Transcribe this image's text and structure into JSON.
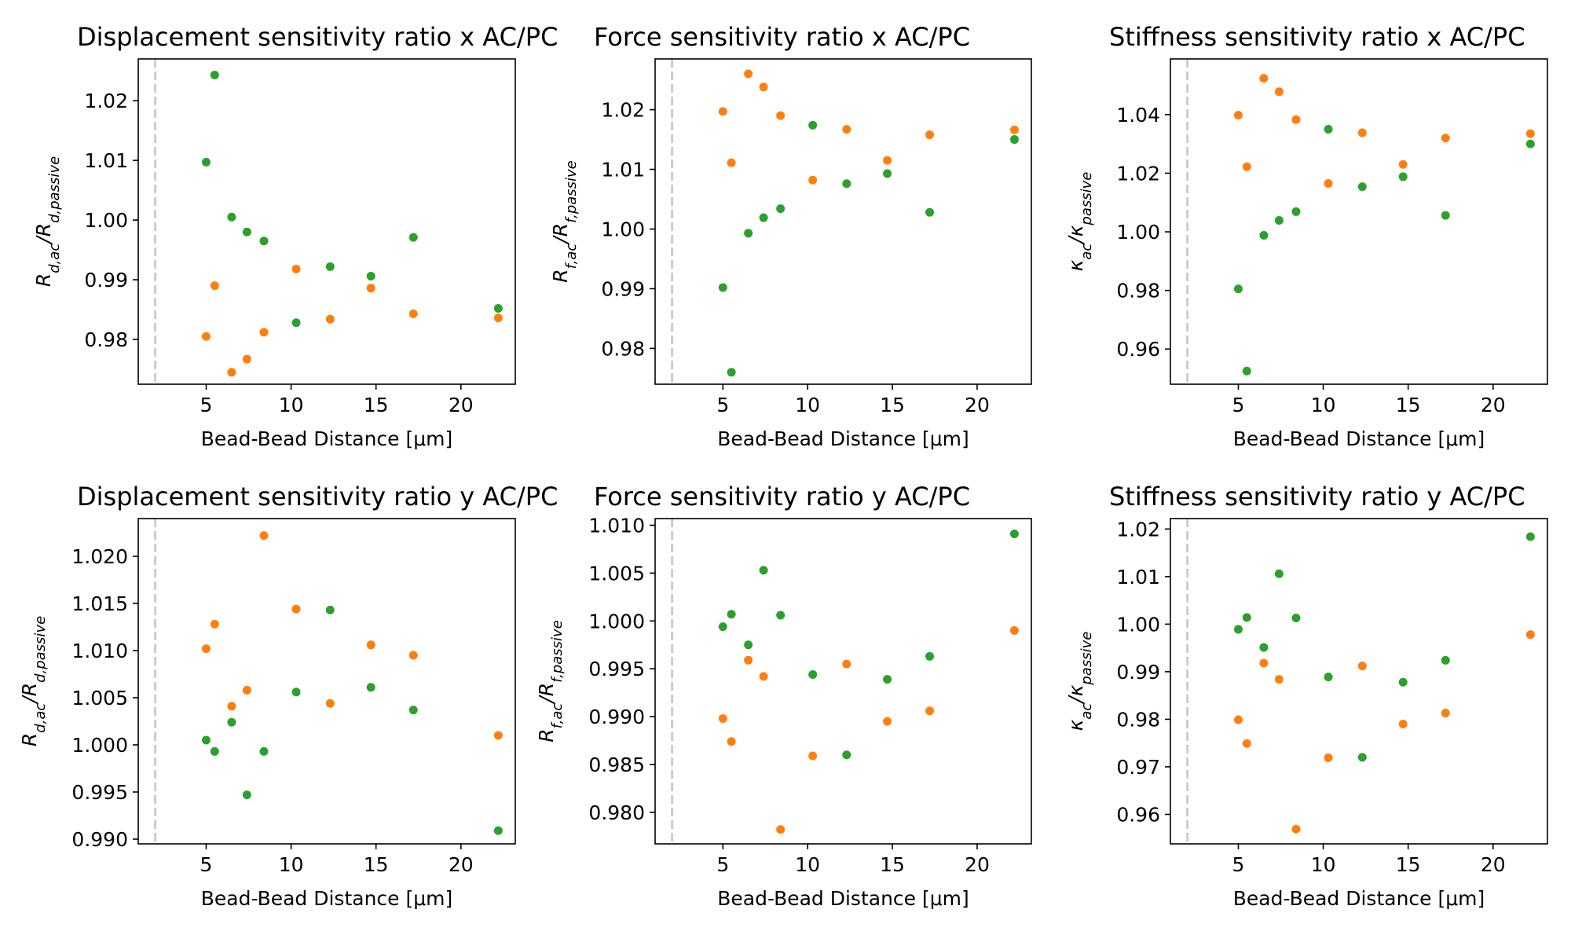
{
  "colors": {
    "orange": "#ff7f0e",
    "green": "#2ca02c",
    "vline": "#cccccc",
    "frame": "#000000"
  },
  "chart_data": [
    {
      "type": "scatter",
      "title": "Displacement sensitivity ratio x AC/PC",
      "xlabel": "Bead-Bead Distance [μm]",
      "ylabel": "R_{d,ac}/R_{d,passive}",
      "xlim": [
        1.0,
        23.2
      ],
      "ylim": [
        0.9725,
        1.027
      ],
      "xticks": [
        5,
        10,
        15,
        20
      ],
      "yticks": [
        0.98,
        0.99,
        1.0,
        1.01,
        1.02
      ],
      "vline": 2.0,
      "series": [
        {
          "color": "orange",
          "x": [
            5.0,
            5.5,
            6.5,
            7.4,
            8.4,
            10.3,
            12.3,
            14.7,
            17.2,
            22.2
          ],
          "y": [
            0.9805,
            0.989,
            0.9745,
            0.9767,
            0.9812,
            0.9918,
            0.9834,
            0.9886,
            0.9843,
            0.9836
          ]
        },
        {
          "color": "green",
          "x": [
            5.0,
            5.5,
            6.5,
            7.4,
            8.4,
            10.3,
            12.3,
            14.7,
            17.2,
            22.2
          ],
          "y": [
            1.0097,
            1.0243,
            1.0005,
            0.998,
            0.9965,
            0.9828,
            0.9922,
            0.9906,
            0.9971,
            0.9852
          ]
        }
      ]
    },
    {
      "type": "scatter",
      "title": "Force sensitivity ratio x AC/PC",
      "xlabel": "Bead-Bead Distance [μm]",
      "ylabel": "R_{f,ac}/R_{f,passive}",
      "xlim": [
        1.0,
        23.2
      ],
      "ylim": [
        0.974,
        1.0285
      ],
      "xticks": [
        5,
        10,
        15,
        20
      ],
      "yticks": [
        0.98,
        0.99,
        1.0,
        1.01,
        1.02
      ],
      "vline": 2.0,
      "series": [
        {
          "color": "orange",
          "x": [
            5.0,
            5.5,
            6.5,
            7.4,
            8.4,
            10.3,
            12.3,
            14.7,
            17.2,
            22.2
          ],
          "y": [
            1.0197,
            1.0111,
            1.026,
            1.0238,
            1.019,
            1.0082,
            1.0167,
            1.0115,
            1.0158,
            1.0166
          ]
        },
        {
          "color": "green",
          "x": [
            5.0,
            5.5,
            6.5,
            7.4,
            8.4,
            10.3,
            12.3,
            14.7,
            17.2,
            22.2
          ],
          "y": [
            0.9902,
            0.976,
            0.9993,
            1.0019,
            1.0034,
            1.0174,
            1.0076,
            1.0093,
            1.0028,
            1.015
          ]
        }
      ]
    },
    {
      "type": "scatter",
      "title": "Stiffness sensitivity ratio x AC/PC",
      "xlabel": "Bead-Bead Distance [μm]",
      "ylabel": "κ_{ac}/κ_{passive}",
      "xlim": [
        1.0,
        23.2
      ],
      "ylim": [
        0.948,
        1.059
      ],
      "xticks": [
        5,
        10,
        15,
        20
      ],
      "yticks": [
        0.96,
        0.98,
        1.0,
        1.02,
        1.04
      ],
      "vline": 2.0,
      "series": [
        {
          "color": "orange",
          "x": [
            5.0,
            5.5,
            6.5,
            7.4,
            8.4,
            10.3,
            12.3,
            14.7,
            17.2,
            22.2
          ],
          "y": [
            1.0398,
            1.0222,
            1.0524,
            1.0478,
            1.0383,
            1.0165,
            1.0338,
            1.023,
            1.032,
            1.0335
          ]
        },
        {
          "color": "green",
          "x": [
            5.0,
            5.5,
            6.5,
            7.4,
            8.4,
            10.3,
            12.3,
            14.7,
            17.2,
            22.2
          ],
          "y": [
            0.9805,
            0.9525,
            0.9988,
            1.0039,
            1.0069,
            1.035,
            1.0154,
            1.0188,
            1.0056,
            1.03
          ]
        }
      ]
    },
    {
      "type": "scatter",
      "title": "Displacement sensitivity ratio y AC/PC",
      "xlabel": "Bead-Bead Distance [μm]",
      "ylabel": "R_{d,ac}/R_{d,passive}",
      "xlim": [
        1.0,
        23.2
      ],
      "ylim": [
        0.9895,
        1.024
      ],
      "xticks": [
        5,
        10,
        15,
        20
      ],
      "yticks": [
        0.99,
        0.995,
        1.0,
        1.005,
        1.01,
        1.015,
        1.02
      ],
      "vline": 2.0,
      "series": [
        {
          "color": "orange",
          "x": [
            5.0,
            5.5,
            6.5,
            7.4,
            8.4,
            10.3,
            12.3,
            14.7,
            17.2,
            22.2
          ],
          "y": [
            1.0102,
            1.0128,
            1.0041,
            1.0058,
            1.0222,
            1.0144,
            1.0044,
            1.0106,
            1.0095,
            1.001
          ]
        },
        {
          "color": "green",
          "x": [
            5.0,
            5.5,
            6.5,
            7.4,
            8.4,
            10.3,
            12.3,
            14.7,
            17.2,
            22.2
          ],
          "y": [
            1.0005,
            0.9993,
            1.0024,
            0.9947,
            0.9993,
            1.0056,
            1.0143,
            1.0061,
            1.0037,
            0.9909
          ]
        }
      ]
    },
    {
      "type": "scatter",
      "title": "Force sensitivity ratio y AC/PC",
      "xlabel": "Bead-Bead Distance [μm]",
      "ylabel": "R_{f,ac}/R_{f,passive}",
      "xlim": [
        1.0,
        23.2
      ],
      "ylim": [
        0.9767,
        1.0107
      ],
      "xticks": [
        5,
        10,
        15,
        20
      ],
      "yticks": [
        0.98,
        0.985,
        0.99,
        0.995,
        1.0,
        1.005,
        1.01
      ],
      "vline": 2.0,
      "series": [
        {
          "color": "orange",
          "x": [
            5.0,
            5.5,
            6.5,
            7.4,
            8.4,
            10.3,
            12.3,
            14.7,
            17.2,
            22.2
          ],
          "y": [
            0.9898,
            0.9874,
            0.9959,
            0.9942,
            0.9782,
            0.9859,
            0.9955,
            0.9895,
            0.9906,
            0.999
          ]
        },
        {
          "color": "green",
          "x": [
            5.0,
            5.5,
            6.5,
            7.4,
            8.4,
            10.3,
            12.3,
            14.7,
            17.2,
            22.2
          ],
          "y": [
            0.9994,
            1.0007,
            0.9975,
            1.0053,
            1.0006,
            0.9944,
            0.986,
            0.9939,
            0.9963,
            1.0091
          ]
        }
      ]
    },
    {
      "type": "scatter",
      "title": "Stiffness sensitivity ratio y AC/PC",
      "xlabel": "Bead-Bead Distance [μm]",
      "ylabel": "κ_{ac}/κ_{passive}",
      "xlim": [
        1.0,
        23.2
      ],
      "ylim": [
        0.9538,
        1.0222
      ],
      "xticks": [
        5,
        10,
        15,
        20
      ],
      "yticks": [
        0.96,
        0.97,
        0.98,
        0.99,
        1.0,
        1.01,
        1.02
      ],
      "vline": 2.0,
      "series": [
        {
          "color": "orange",
          "x": [
            5.0,
            5.5,
            6.5,
            7.4,
            8.4,
            10.3,
            12.3,
            14.7,
            17.2,
            22.2
          ],
          "y": [
            0.9799,
            0.9749,
            0.9918,
            0.9884,
            0.9569,
            0.9719,
            0.9912,
            0.979,
            0.9813,
            0.9978
          ]
        },
        {
          "color": "green",
          "x": [
            5.0,
            5.5,
            6.5,
            7.4,
            8.4,
            10.3,
            12.3,
            14.7,
            17.2,
            22.2
          ],
          "y": [
            0.9989,
            1.0014,
            0.9951,
            1.0106,
            1.0013,
            0.9889,
            0.972,
            0.9878,
            0.9924,
            1.0184
          ]
        }
      ]
    }
  ]
}
